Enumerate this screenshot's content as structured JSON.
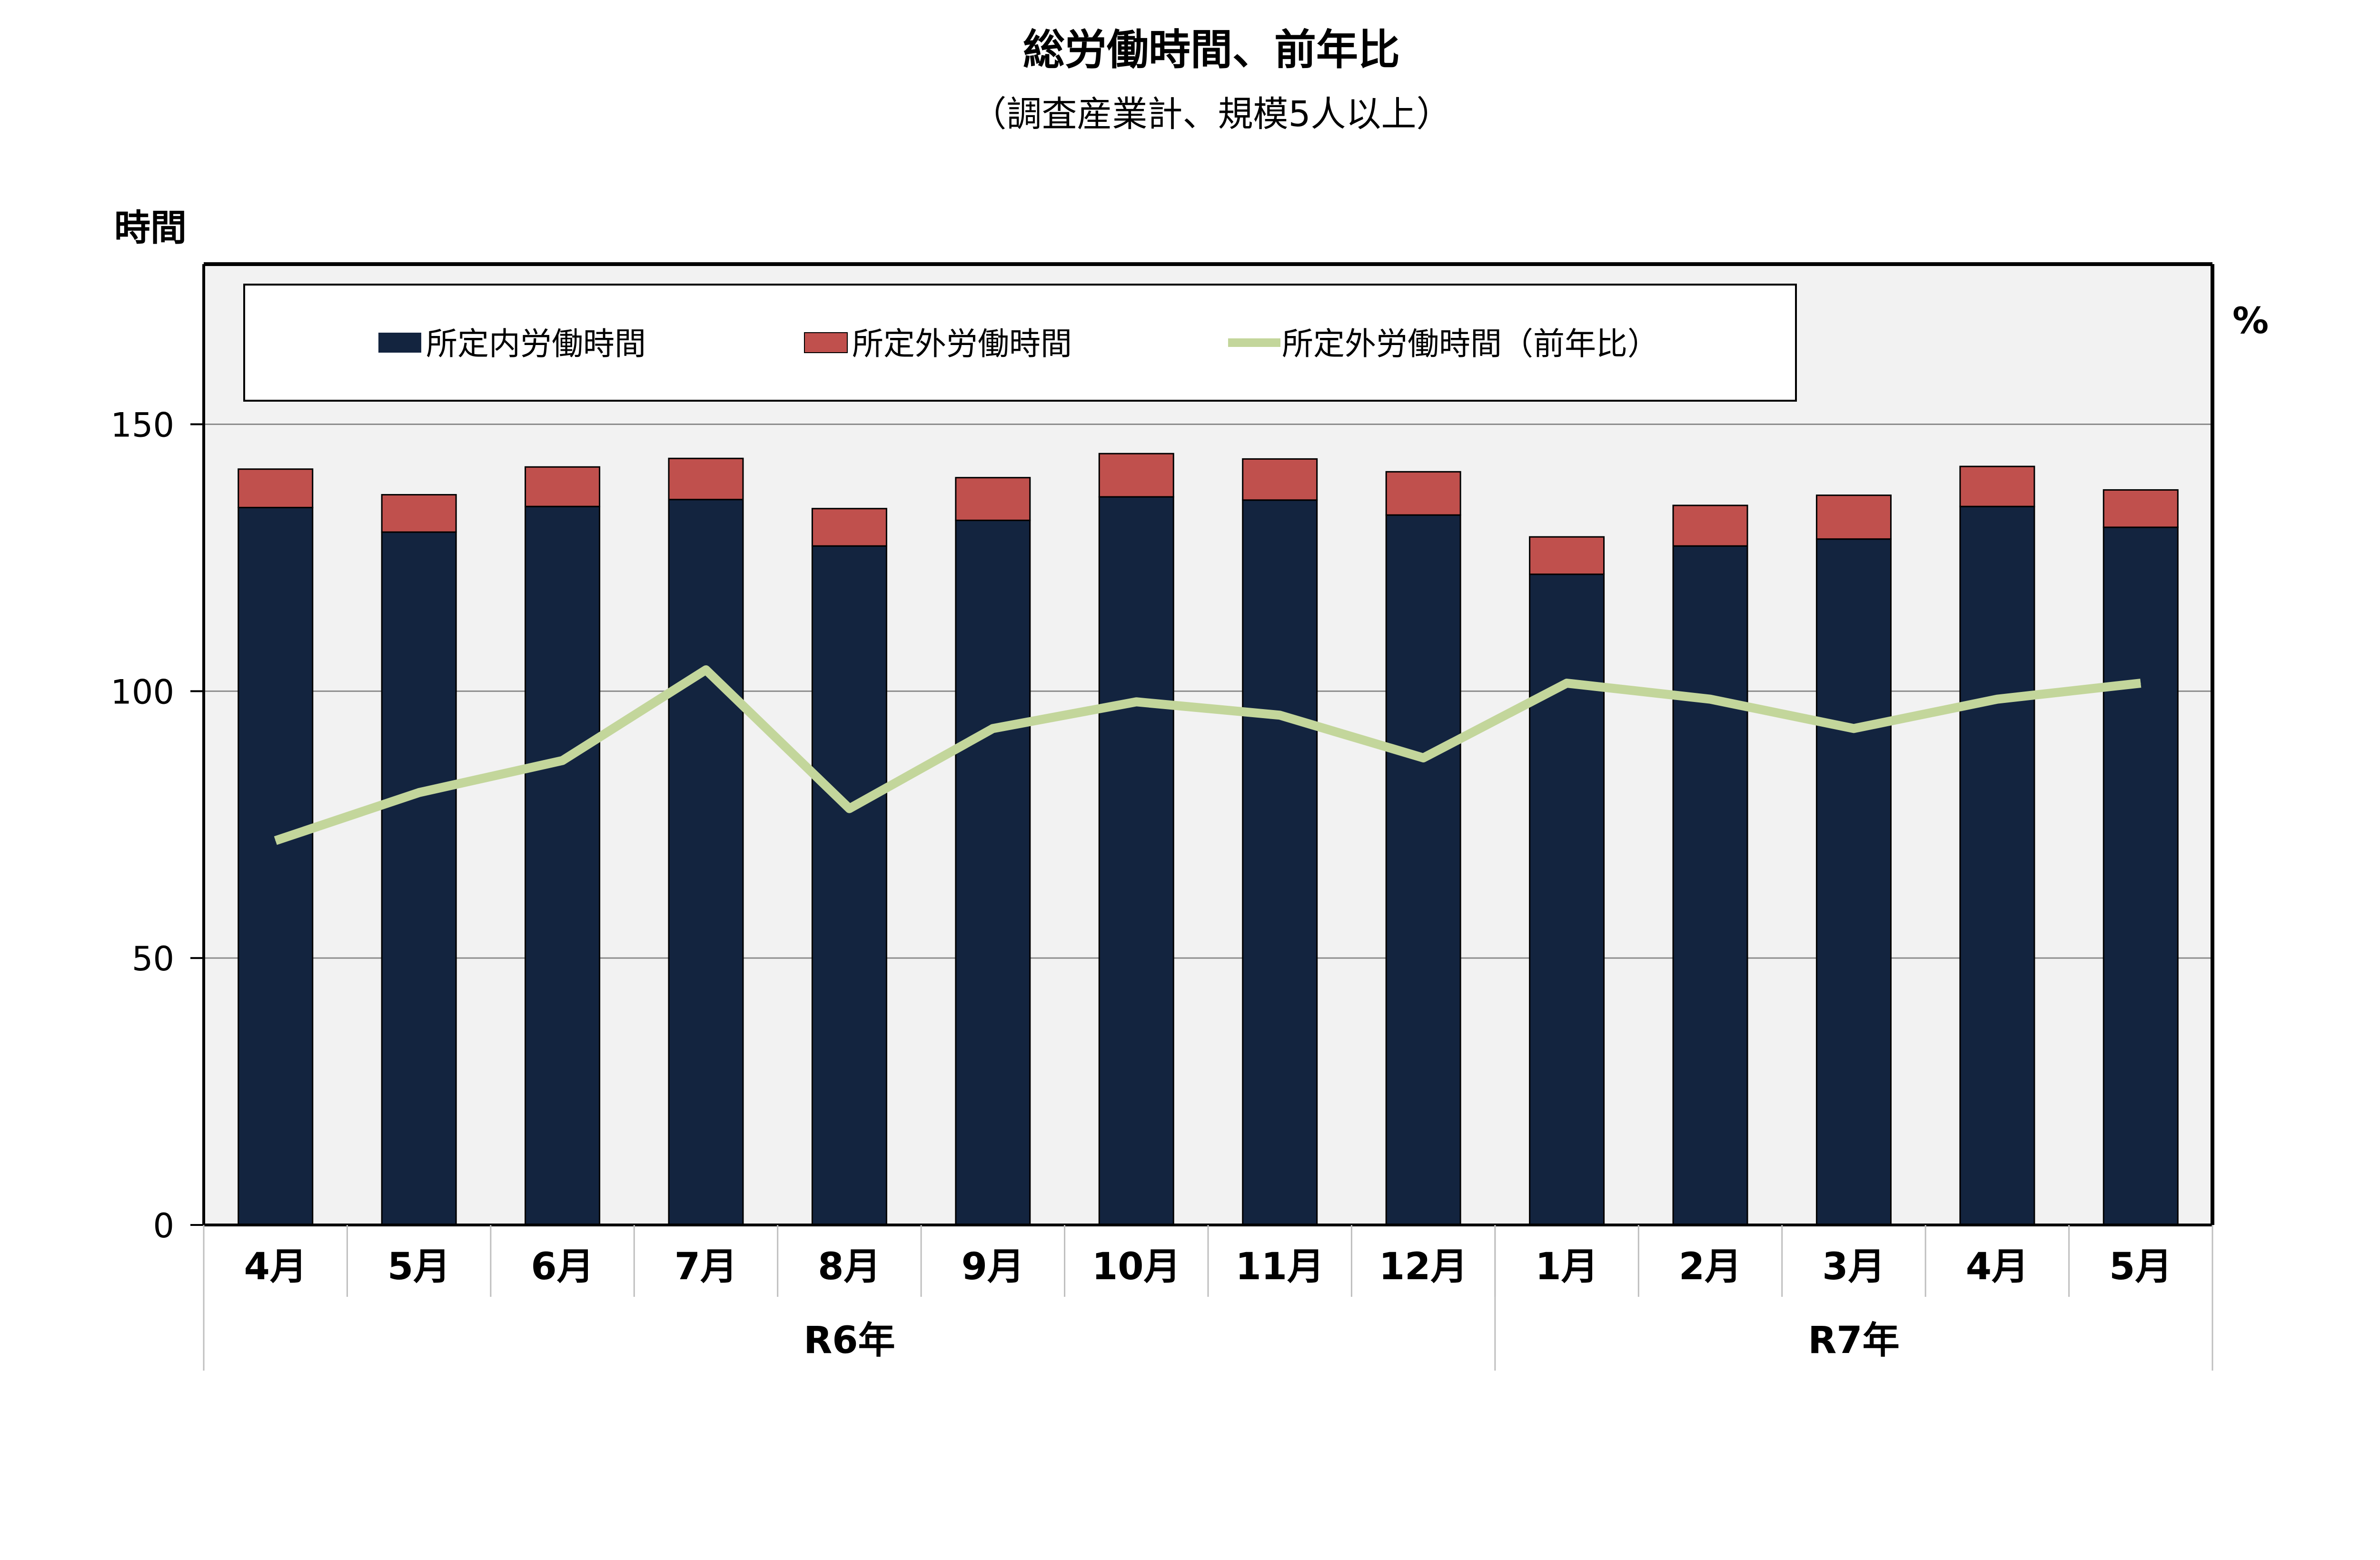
{
  "chart_data": {
    "type": "bar",
    "title": "総労働時間、前年比",
    "subtitle": "（調査産業計、規模5人以上）",
    "ylabel": "時間",
    "y2label": "%",
    "ylim": [
      0,
      180
    ],
    "yticks": [
      0,
      50,
      100,
      150
    ],
    "grid": true,
    "legend_position": "top",
    "categories": [
      "4月",
      "5月",
      "6月",
      "7月",
      "8月",
      "9月",
      "10月",
      "11月",
      "12月",
      "1月",
      "2月",
      "3月",
      "4月",
      "5月"
    ],
    "groups": [
      {
        "label": "R6年",
        "count": 9
      },
      {
        "label": "R7年",
        "count": 5
      }
    ],
    "series": [
      {
        "name": "所定内労働時間",
        "type": "bar",
        "color": "#13243f",
        "values": [
          134.4,
          129.8,
          134.6,
          135.9,
          127.2,
          132.0,
          136.4,
          135.8,
          133.0,
          121.9,
          127.2,
          128.5,
          134.6,
          130.7
        ]
      },
      {
        "name": "所定外労働時間",
        "type": "bar",
        "color": "#c0504d",
        "values": [
          7.2,
          7.0,
          7.4,
          7.7,
          7.0,
          8.0,
          8.1,
          7.7,
          8.1,
          7.0,
          7.6,
          8.2,
          7.5,
          7.0
        ]
      },
      {
        "name": "所定外労働時間（前年比）",
        "type": "line",
        "color": "#c3d69b",
        "values": [
          72.0,
          81.0,
          87.0,
          104.0,
          78.0,
          93.0,
          98.0,
          95.5,
          87.5,
          101.5,
          98.5,
          93.0,
          98.5,
          101.5
        ]
      }
    ]
  }
}
